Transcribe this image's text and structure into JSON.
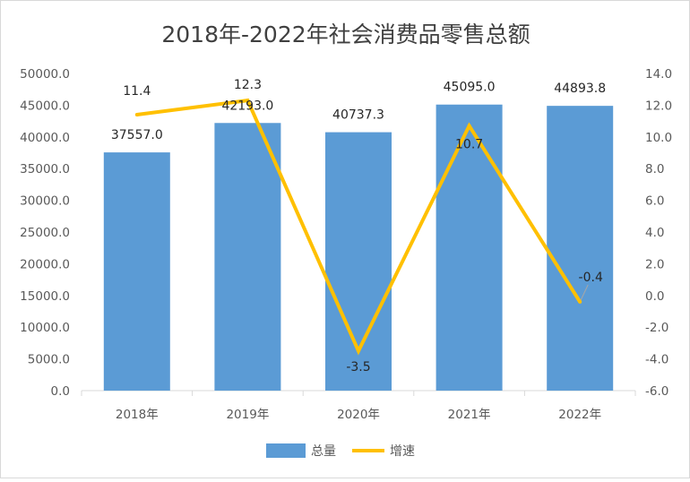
{
  "chart_data": {
    "type": "bar",
    "title": "2018年-2022年社会消费品零售总额",
    "categories": [
      "2018年",
      "2019年",
      "2020年",
      "2021年",
      "2022年"
    ],
    "series": [
      {
        "name": "总量",
        "type": "bar",
        "axis": "left",
        "color": "#5b9bd5",
        "values": [
          37557.0,
          42193.0,
          40737.3,
          45095.0,
          44893.8
        ],
        "labels": [
          "37557.0",
          "42193.0",
          "40737.3",
          "45095.0",
          "44893.8"
        ]
      },
      {
        "name": "增速",
        "type": "line",
        "axis": "right",
        "color": "#ffc000",
        "values": [
          11.4,
          12.3,
          -3.5,
          10.7,
          -0.4
        ],
        "labels": [
          "11.4",
          "12.3",
          "-3.5",
          "10.7",
          "-0.4"
        ]
      }
    ],
    "y_left": {
      "min": 0,
      "max": 50000,
      "step": 5000,
      "ticks": [
        "0.0",
        "5000.0",
        "10000.0",
        "15000.0",
        "20000.0",
        "25000.0",
        "30000.0",
        "35000.0",
        "40000.0",
        "45000.0",
        "50000.0"
      ]
    },
    "y_right": {
      "min": -6,
      "max": 14,
      "step": 2,
      "ticks": [
        "-6.0",
        "-4.0",
        "-2.0",
        "0.0",
        "2.0",
        "4.0",
        "6.0",
        "8.0",
        "10.0",
        "12.0",
        "14.0"
      ]
    },
    "grid": false,
    "legend": "bottom"
  }
}
